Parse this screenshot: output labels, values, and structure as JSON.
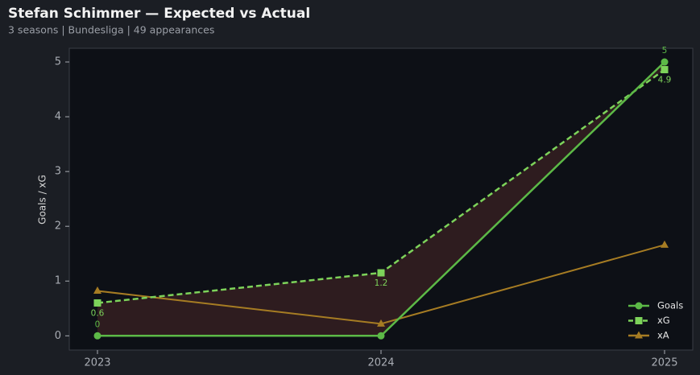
{
  "chart_data": {
    "type": "line",
    "title": "Stefan Schimmer — Expected vs Actual",
    "subtitle": "3 seasons | Bundesliga | 49 appearances",
    "y_label": "Goals / xG",
    "categories": [
      "2023",
      "2024",
      "2025"
    ],
    "series": [
      {
        "name": "Goals",
        "color": "#5cb947",
        "marker": "circle",
        "dash": false,
        "label_position": "above",
        "values": [
          0,
          0,
          5
        ],
        "value_labels": [
          "0",
          null,
          "5"
        ]
      },
      {
        "name": "xG",
        "color": "#7dd35a",
        "marker": "square",
        "dash": true,
        "label_position": "below",
        "values": [
          0.6,
          1.15,
          4.86
        ],
        "value_labels": [
          "0.6",
          "1.2",
          "4.9"
        ]
      },
      {
        "name": "xA",
        "color": "#a67c23",
        "marker": "triangle",
        "dash": false,
        "values": [
          0.82,
          0.22,
          1.66
        ]
      }
    ],
    "fill_between": {
      "color": "#2e1c1f"
    },
    "ylim": [
      -0.26,
      5.25
    ],
    "yticks": [
      0,
      1,
      2,
      3,
      4,
      5
    ],
    "grid": false,
    "legend": "lower right"
  }
}
